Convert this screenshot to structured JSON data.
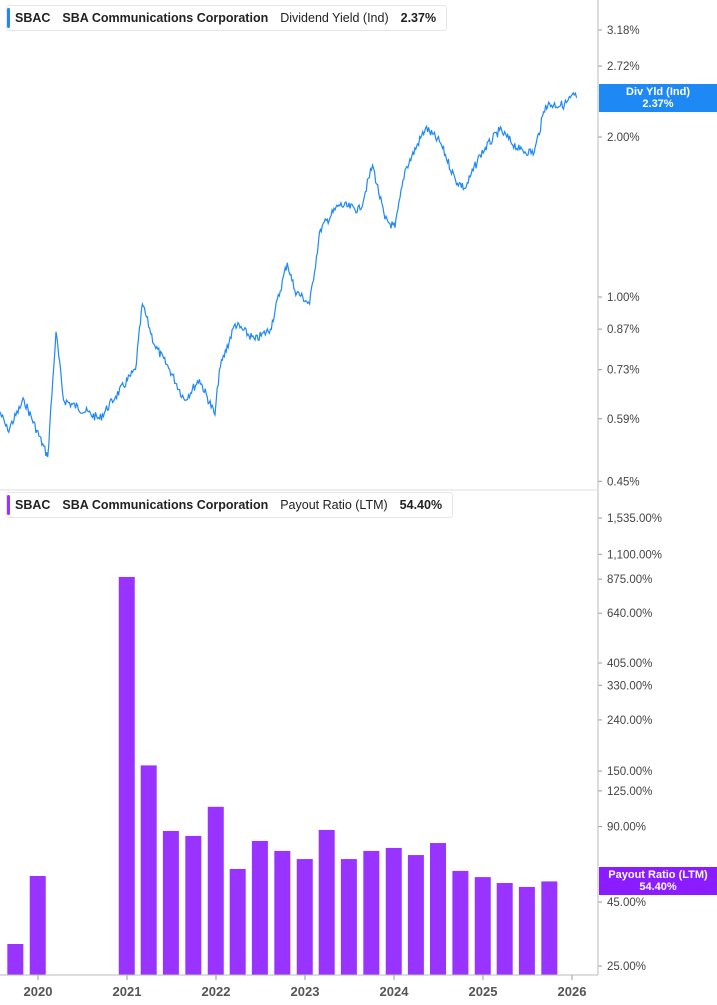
{
  "colors": {
    "yield": "#1e88f5",
    "payout": "#9933ff",
    "payout_tag": "#8a1cff"
  },
  "chart_data": [
    {
      "type": "line",
      "legend": {
        "ticker": "SBAC",
        "company": "SBA Communications Corporation",
        "metric": "Dividend Yield (Ind)",
        "value": "2.37%"
      },
      "tag": {
        "label": "Div Yld (Ind)",
        "value": "2.37%"
      },
      "y_scale": "log",
      "ylim": [
        0.45,
        3.6
      ],
      "y_ticks": [
        "3.18%",
        "2.72%",
        "2.00%",
        "1.00%",
        "0.87%",
        "0.73%",
        "0.59%",
        "0.45%"
      ],
      "y_tick_values": [
        3.18,
        2.72,
        2.0,
        1.0,
        0.87,
        0.73,
        0.59,
        0.45
      ],
      "series": [
        {
          "x": [
            "2019-07-27",
            "2019-08-30",
            "2019-11-05",
            "2020-02-10",
            "2020-03-15",
            "2020-04-15",
            "2020-09-10",
            "2020-11-15",
            "2021-02-05",
            "2021-03-05",
            "2021-04-25",
            "2021-06-25",
            "2021-08-25",
            "2021-10-25",
            "2021-12-28",
            "2022-01-15",
            "2022-03-20",
            "2022-06-10",
            "2022-08-12",
            "2022-10-20",
            "2022-11-20",
            "2023-01-20",
            "2023-03-05",
            "2023-05-20",
            "2023-08-15",
            "2023-10-05",
            "2023-11-25",
            "2024-01-05",
            "2024-02-15",
            "2024-05-10",
            "2024-07-10",
            "2024-09-10",
            "2024-10-20",
            "2024-12-20",
            "2025-03-10",
            "2025-06-01",
            "2025-07-30",
            "2025-09-15",
            "2025-12-01",
            "2026-01-10",
            "2026-01-20"
          ],
          "y": [
            0.61,
            0.56,
            0.64,
            0.5,
            0.86,
            0.64,
            0.59,
            0.65,
            0.73,
            0.97,
            0.81,
            0.73,
            0.64,
            0.7,
            0.6,
            0.73,
            0.89,
            0.83,
            0.87,
            1.16,
            1.03,
            0.97,
            1.34,
            1.49,
            1.46,
            1.77,
            1.4,
            1.35,
            1.73,
            2.08,
            1.95,
            1.66,
            1.6,
            1.85,
            2.06,
            1.89,
            1.87,
            2.3,
            2.3,
            2.4,
            2.37
          ]
        }
      ]
    },
    {
      "type": "bar",
      "legend": {
        "ticker": "SBAC",
        "company": "SBA Communications Corporation",
        "metric": "Payout Ratio (LTM)",
        "value": "54.40%"
      },
      "tag": {
        "label": "Payout Ratio (LTM)",
        "value": "54.40%"
      },
      "y_scale": "log",
      "ylim": [
        23,
        1900
      ],
      "y_ticks": [
        "1,535.00%",
        "1,100.00%",
        "875.00%",
        "640.00%",
        "405.00%",
        "330.00%",
        "240.00%",
        "150.00%",
        "125.00%",
        "90.00%",
        "45.00%",
        "25.00%"
      ],
      "y_tick_values": [
        1535,
        1100,
        875,
        640,
        405,
        330,
        240,
        150,
        125,
        90,
        45,
        25
      ],
      "categories": [
        "2019-09-30",
        "2019-12-31",
        "2020-12-31",
        "2021-03-31",
        "2021-06-30",
        "2021-09-30",
        "2021-12-31",
        "2022-03-31",
        "2022-06-30",
        "2022-09-30",
        "2022-12-31",
        "2023-03-31",
        "2023-06-30",
        "2023-09-30",
        "2023-12-31",
        "2024-03-31",
        "2024-06-30",
        "2024-09-30",
        "2024-12-31",
        "2025-03-31",
        "2025-06-30",
        "2025-09-30"
      ],
      "values": [
        30.6,
        57.2,
        893,
        158,
        86.5,
        82.6,
        108,
        61,
        78.9,
        72,
        66.8,
        87.3,
        66.8,
        72,
        74,
        69.3,
        77.4,
        59.9,
        56.6,
        53.6,
        51.7,
        54.4
      ]
    }
  ],
  "x_axis": {
    "ticks": [
      "2020",
      "2021",
      "2022",
      "2023",
      "2024",
      "2025",
      "2026"
    ]
  }
}
